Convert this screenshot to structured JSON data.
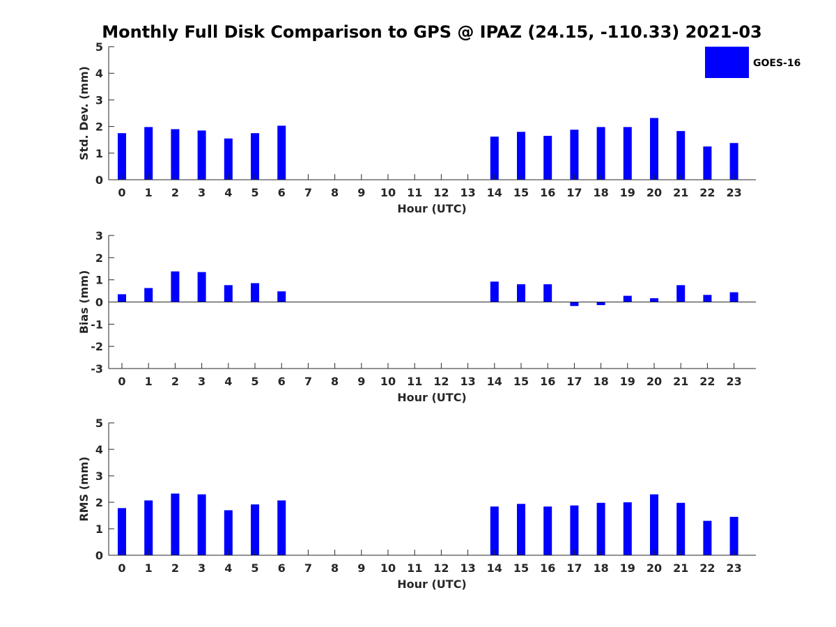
{
  "title": "Monthly Full Disk Comparison to GPS @ IPAZ (24.15, -110.33) 2021-03",
  "legend": {
    "label": "GOES-16",
    "placement": "top-right"
  },
  "colors": {
    "bar": "#0000ff",
    "axis": "#262626",
    "background": "#ffffff"
  },
  "chart_data": [
    {
      "type": "bar",
      "title": "",
      "xlabel": "Hour (UTC)",
      "ylabel": "Std. Dev. (mm)",
      "ylim": [
        0,
        5
      ],
      "yticks": [
        0,
        1,
        2,
        3,
        4,
        5
      ],
      "categories": [
        "0",
        "1",
        "2",
        "3",
        "4",
        "5",
        "6",
        "7",
        "8",
        "9",
        "10",
        "11",
        "12",
        "13",
        "14",
        "15",
        "16",
        "17",
        "18",
        "19",
        "20",
        "21",
        "22",
        "23"
      ],
      "series": [
        {
          "name": "GOES-16",
          "values": [
            1.75,
            1.98,
            1.9,
            1.85,
            1.55,
            1.75,
            2.03,
            null,
            null,
            null,
            null,
            null,
            null,
            null,
            1.62,
            1.8,
            1.65,
            1.88,
            1.98,
            1.98,
            2.32,
            1.83,
            1.25,
            1.38
          ]
        }
      ],
      "grid": false
    },
    {
      "type": "bar",
      "title": "",
      "xlabel": "Hour (UTC)",
      "ylabel": "Bias (mm)",
      "ylim": [
        -3,
        3
      ],
      "yticks": [
        -3,
        -2,
        -1,
        0,
        1,
        2,
        3
      ],
      "categories": [
        "0",
        "1",
        "2",
        "3",
        "4",
        "5",
        "6",
        "7",
        "8",
        "9",
        "10",
        "11",
        "12",
        "13",
        "14",
        "15",
        "16",
        "17",
        "18",
        "19",
        "20",
        "21",
        "22",
        "23"
      ],
      "series": [
        {
          "name": "GOES-16",
          "values": [
            0.35,
            0.63,
            1.38,
            1.35,
            0.76,
            0.85,
            0.48,
            null,
            null,
            null,
            null,
            null,
            null,
            null,
            0.92,
            0.8,
            0.8,
            -0.18,
            -0.14,
            0.28,
            0.17,
            0.76,
            0.32,
            0.44
          ]
        }
      ],
      "grid": false,
      "zero_line": true
    },
    {
      "type": "bar",
      "title": "",
      "xlabel": "Hour (UTC)",
      "ylabel": "RMS (mm)",
      "ylim": [
        0,
        5
      ],
      "yticks": [
        0,
        1,
        2,
        3,
        4,
        5
      ],
      "categories": [
        "0",
        "1",
        "2",
        "3",
        "4",
        "5",
        "6",
        "7",
        "8",
        "9",
        "10",
        "11",
        "12",
        "13",
        "14",
        "15",
        "16",
        "17",
        "18",
        "19",
        "20",
        "21",
        "22",
        "23"
      ],
      "series": [
        {
          "name": "GOES-16",
          "values": [
            1.78,
            2.07,
            2.33,
            2.3,
            1.7,
            1.92,
            2.07,
            null,
            null,
            null,
            null,
            null,
            null,
            null,
            1.84,
            1.94,
            1.84,
            1.88,
            1.98,
            2.0,
            2.3,
            1.98,
            1.3,
            1.45
          ]
        }
      ],
      "grid": false
    }
  ]
}
